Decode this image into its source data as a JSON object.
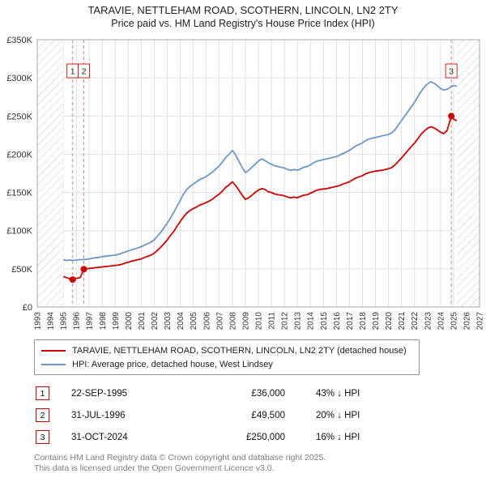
{
  "title": "TARAVIE, NETTLEHAM ROAD, SCOTHERN, LINCOLN, LN2 2TY",
  "subtitle": "Price paid vs. HM Land Registry's House Price Index (HPI)",
  "chart_data": {
    "type": "line",
    "title": "TARAVIE, NETTLEHAM ROAD, SCOTHERN, LINCOLN, LN2 2TY",
    "subtitle": "Price paid vs. HM Land Registry's House Price Index (HPI)",
    "xlim": [
      1993,
      2027
    ],
    "ylim": [
      0,
      350000
    ],
    "grid": true,
    "legend_position": "bottom",
    "data_start": 1995.0,
    "data_end": 2025.25,
    "x_ticks": [
      1993,
      1994,
      1995,
      1996,
      1997,
      1998,
      1999,
      2000,
      2001,
      2002,
      2003,
      2004,
      2005,
      2006,
      2007,
      2008,
      2009,
      2010,
      2011,
      2012,
      2013,
      2014,
      2015,
      2016,
      2017,
      2018,
      2019,
      2020,
      2021,
      2022,
      2023,
      2024,
      2025,
      2026,
      2027
    ],
    "y_ticks": [
      {
        "v": 0,
        "label": "£0"
      },
      {
        "v": 50000,
        "label": "£50K"
      },
      {
        "v": 100000,
        "label": "£100K"
      },
      {
        "v": 150000,
        "label": "£150K"
      },
      {
        "v": 200000,
        "label": "£200K"
      },
      {
        "v": 250000,
        "label": "£250K"
      },
      {
        "v": 300000,
        "label": "£300K"
      },
      {
        "v": 350000,
        "label": "£350K"
      }
    ],
    "series": [
      {
        "name": "TARAVIE, NETTLEHAM ROAD, SCOTHERN, LINCOLN, LN2 2TY (detached house)",
        "color": "#cc0000",
        "points": [
          [
            1995.0,
            40000
          ],
          [
            1995.25,
            38500
          ],
          [
            1995.5,
            37000
          ],
          [
            1995.72,
            36000
          ],
          [
            1996.0,
            37500
          ],
          [
            1996.3,
            38500
          ],
          [
            1996.58,
            49500
          ],
          [
            1996.75,
            50000
          ],
          [
            1997.0,
            50500
          ],
          [
            1997.25,
            51000
          ],
          [
            1997.5,
            51500
          ],
          [
            1997.75,
            52000
          ],
          [
            1998.0,
            52500
          ],
          [
            1998.25,
            53000
          ],
          [
            1998.5,
            53500
          ],
          [
            1998.75,
            54000
          ],
          [
            1999.0,
            54500
          ],
          [
            1999.25,
            55000
          ],
          [
            1999.5,
            56000
          ],
          [
            1999.75,
            57500
          ],
          [
            2000.0,
            58500
          ],
          [
            2000.25,
            60000
          ],
          [
            2000.5,
            61000
          ],
          [
            2000.75,
            62000
          ],
          [
            2001.0,
            63000
          ],
          [
            2001.25,
            65000
          ],
          [
            2001.5,
            66500
          ],
          [
            2001.75,
            68000
          ],
          [
            2002.0,
            70500
          ],
          [
            2002.25,
            74500
          ],
          [
            2002.5,
            78500
          ],
          [
            2002.75,
            83000
          ],
          [
            2003.0,
            88000
          ],
          [
            2003.25,
            94000
          ],
          [
            2003.5,
            99000
          ],
          [
            2003.75,
            106000
          ],
          [
            2004.0,
            112000
          ],
          [
            2004.25,
            118000
          ],
          [
            2004.5,
            123000
          ],
          [
            2004.75,
            126500
          ],
          [
            2005.0,
            129000
          ],
          [
            2005.25,
            131000
          ],
          [
            2005.5,
            133500
          ],
          [
            2005.75,
            135000
          ],
          [
            2006.0,
            137000
          ],
          [
            2006.25,
            139000
          ],
          [
            2006.5,
            141500
          ],
          [
            2006.75,
            145000
          ],
          [
            2007.0,
            148000
          ],
          [
            2007.25,
            152000
          ],
          [
            2007.5,
            157000
          ],
          [
            2007.75,
            160000
          ],
          [
            2008.0,
            164000
          ],
          [
            2008.25,
            159000
          ],
          [
            2008.5,
            153000
          ],
          [
            2008.75,
            146500
          ],
          [
            2009.0,
            141000
          ],
          [
            2009.25,
            143000
          ],
          [
            2009.5,
            146500
          ],
          [
            2009.75,
            150000
          ],
          [
            2010.0,
            153000
          ],
          [
            2010.25,
            155000
          ],
          [
            2010.5,
            154000
          ],
          [
            2010.75,
            151000
          ],
          [
            2011.0,
            150000
          ],
          [
            2011.25,
            148000
          ],
          [
            2011.5,
            147000
          ],
          [
            2011.75,
            146500
          ],
          [
            2012.0,
            145500
          ],
          [
            2012.25,
            144000
          ],
          [
            2012.5,
            143000
          ],
          [
            2012.75,
            144000
          ],
          [
            2013.0,
            143000
          ],
          [
            2013.25,
            145000
          ],
          [
            2013.5,
            146500
          ],
          [
            2013.75,
            147000
          ],
          [
            2014.0,
            149000
          ],
          [
            2014.25,
            151000
          ],
          [
            2014.5,
            153000
          ],
          [
            2014.75,
            154000
          ],
          [
            2015.0,
            154500
          ],
          [
            2015.25,
            155000
          ],
          [
            2015.5,
            156000
          ],
          [
            2015.75,
            157000
          ],
          [
            2016.0,
            158000
          ],
          [
            2016.25,
            159000
          ],
          [
            2016.5,
            161000
          ],
          [
            2016.75,
            162500
          ],
          [
            2017.0,
            164000
          ],
          [
            2017.25,
            166500
          ],
          [
            2017.5,
            169000
          ],
          [
            2017.75,
            170500
          ],
          [
            2018.0,
            172000
          ],
          [
            2018.25,
            174500
          ],
          [
            2018.5,
            176000
          ],
          [
            2018.75,
            177000
          ],
          [
            2019.0,
            178000
          ],
          [
            2019.25,
            178500
          ],
          [
            2019.5,
            179000
          ],
          [
            2019.75,
            180000
          ],
          [
            2020.0,
            181000
          ],
          [
            2020.25,
            182500
          ],
          [
            2020.5,
            186000
          ],
          [
            2020.75,
            190500
          ],
          [
            2021.0,
            195000
          ],
          [
            2021.25,
            200000
          ],
          [
            2021.5,
            205000
          ],
          [
            2021.75,
            210000
          ],
          [
            2022.0,
            214500
          ],
          [
            2022.25,
            220000
          ],
          [
            2022.5,
            226000
          ],
          [
            2022.75,
            230500
          ],
          [
            2023.0,
            234000
          ],
          [
            2023.25,
            236000
          ],
          [
            2023.5,
            234500
          ],
          [
            2023.75,
            232000
          ],
          [
            2024.0,
            229000
          ],
          [
            2024.25,
            227000
          ],
          [
            2024.5,
            231000
          ],
          [
            2024.83,
            250000
          ],
          [
            2025.0,
            246000
          ],
          [
            2025.25,
            244000
          ]
        ]
      },
      {
        "name": "HPI: Average price, detached house, West Lindsey",
        "color": "#6f96c6",
        "points": [
          [
            1995.0,
            62000
          ],
          [
            1995.25,
            61000
          ],
          [
            1995.5,
            61500
          ],
          [
            1995.75,
            61000
          ],
          [
            1996.0,
            61500
          ],
          [
            1996.25,
            62000
          ],
          [
            1996.5,
            62000
          ],
          [
            1996.75,
            62500
          ],
          [
            1997.0,
            63000
          ],
          [
            1997.25,
            64000
          ],
          [
            1997.5,
            64500
          ],
          [
            1997.75,
            65000
          ],
          [
            1998.0,
            66000
          ],
          [
            1998.25,
            66500
          ],
          [
            1998.5,
            67000
          ],
          [
            1998.75,
            67500
          ],
          [
            1999.0,
            68000
          ],
          [
            1999.25,
            69000
          ],
          [
            1999.5,
            70500
          ],
          [
            1999.75,
            72000
          ],
          [
            2000.0,
            73500
          ],
          [
            2000.25,
            75000
          ],
          [
            2000.5,
            76000
          ],
          [
            2000.75,
            77500
          ],
          [
            2001.0,
            79000
          ],
          [
            2001.25,
            81000
          ],
          [
            2001.5,
            83000
          ],
          [
            2001.75,
            85000
          ],
          [
            2002.0,
            88000
          ],
          [
            2002.25,
            93000
          ],
          [
            2002.5,
            98000
          ],
          [
            2002.75,
            104000
          ],
          [
            2003.0,
            110000
          ],
          [
            2003.25,
            117000
          ],
          [
            2003.5,
            124000
          ],
          [
            2003.75,
            132000
          ],
          [
            2004.0,
            140000
          ],
          [
            2004.25,
            148000
          ],
          [
            2004.5,
            154000
          ],
          [
            2004.75,
            158000
          ],
          [
            2005.0,
            161000
          ],
          [
            2005.25,
            164000
          ],
          [
            2005.5,
            167000
          ],
          [
            2005.75,
            169000
          ],
          [
            2006.0,
            171000
          ],
          [
            2006.25,
            174000
          ],
          [
            2006.5,
            177000
          ],
          [
            2006.75,
            181000
          ],
          [
            2007.0,
            185000
          ],
          [
            2007.25,
            190000
          ],
          [
            2007.5,
            196000
          ],
          [
            2007.75,
            200000
          ],
          [
            2008.0,
            205000
          ],
          [
            2008.25,
            199000
          ],
          [
            2008.5,
            191000
          ],
          [
            2008.75,
            183000
          ],
          [
            2009.0,
            176000
          ],
          [
            2009.25,
            179000
          ],
          [
            2009.5,
            183000
          ],
          [
            2009.75,
            187000
          ],
          [
            2010.0,
            191000
          ],
          [
            2010.25,
            194000
          ],
          [
            2010.5,
            192000
          ],
          [
            2010.75,
            189000
          ],
          [
            2011.0,
            187000
          ],
          [
            2011.25,
            185000
          ],
          [
            2011.5,
            184000
          ],
          [
            2011.75,
            183000
          ],
          [
            2012.0,
            182000
          ],
          [
            2012.25,
            180000
          ],
          [
            2012.5,
            179000
          ],
          [
            2012.75,
            180000
          ],
          [
            2013.0,
            179000
          ],
          [
            2013.25,
            181000
          ],
          [
            2013.5,
            183000
          ],
          [
            2013.75,
            184000
          ],
          [
            2014.0,
            186000
          ],
          [
            2014.25,
            189000
          ],
          [
            2014.5,
            191000
          ],
          [
            2014.75,
            192000
          ],
          [
            2015.0,
            193000
          ],
          [
            2015.25,
            194000
          ],
          [
            2015.5,
            195000
          ],
          [
            2015.75,
            196000
          ],
          [
            2016.0,
            197000
          ],
          [
            2016.25,
            199000
          ],
          [
            2016.5,
            201000
          ],
          [
            2016.75,
            203000
          ],
          [
            2017.0,
            205000
          ],
          [
            2017.25,
            208000
          ],
          [
            2017.5,
            211000
          ],
          [
            2017.75,
            213000
          ],
          [
            2018.0,
            215000
          ],
          [
            2018.25,
            218000
          ],
          [
            2018.5,
            220000
          ],
          [
            2018.75,
            221000
          ],
          [
            2019.0,
            222000
          ],
          [
            2019.25,
            223000
          ],
          [
            2019.5,
            224000
          ],
          [
            2019.75,
            225000
          ],
          [
            2020.0,
            226000
          ],
          [
            2020.25,
            228000
          ],
          [
            2020.5,
            232000
          ],
          [
            2020.75,
            238000
          ],
          [
            2021.0,
            244000
          ],
          [
            2021.25,
            250000
          ],
          [
            2021.5,
            256000
          ],
          [
            2021.75,
            262000
          ],
          [
            2022.0,
            268000
          ],
          [
            2022.25,
            275000
          ],
          [
            2022.5,
            282000
          ],
          [
            2022.75,
            288000
          ],
          [
            2023.0,
            292000
          ],
          [
            2023.25,
            295000
          ],
          [
            2023.5,
            293000
          ],
          [
            2023.75,
            290000
          ],
          [
            2024.0,
            286000
          ],
          [
            2024.25,
            284000
          ],
          [
            2024.5,
            285000
          ],
          [
            2024.75,
            288000
          ],
          [
            2025.0,
            290000
          ],
          [
            2025.25,
            289000
          ]
        ]
      }
    ],
    "markers": [
      {
        "n": "1",
        "x": 1995.72,
        "y": 36000
      },
      {
        "n": "2",
        "x": 1996.58,
        "y": 49500
      },
      {
        "n": "3",
        "x": 2024.83,
        "y": 250000
      }
    ],
    "gridline_color": "#e0e0e0",
    "hatch_color": "#cfcfcf",
    "marker_line_color": "#dd8888"
  },
  "legend": {
    "items": [
      {
        "label": "TARAVIE, NETTLEHAM ROAD, SCOTHERN, LINCOLN, LN2 2TY (detached house)",
        "color": "#cc0000"
      },
      {
        "label": "HPI: Average price, detached house, West Lindsey",
        "color": "#6f96c6"
      }
    ]
  },
  "transactions": [
    {
      "n": "1",
      "date": "22-SEP-1995",
      "price": "£36,000",
      "hpi": "43% ↓ HPI"
    },
    {
      "n": "2",
      "date": "31-JUL-1996",
      "price": "£49,500",
      "hpi": "20% ↓ HPI"
    },
    {
      "n": "3",
      "date": "31-OCT-2024",
      "price": "£250,000",
      "hpi": "16% ↓ HPI"
    }
  ],
  "footer": {
    "line1": "Contains HM Land Registry data © Crown copyright and database right 2025.",
    "line2": "This data is licensed under the Open Government Licence v3.0."
  }
}
